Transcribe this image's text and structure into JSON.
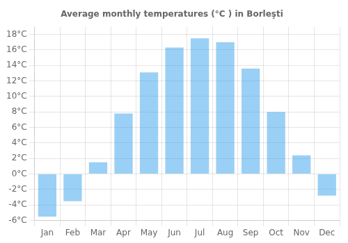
{
  "chart_data": {
    "type": "bar",
    "title": "Average monthly temperatures (°C ) in Borleşti",
    "categories": [
      "Jan",
      "Feb",
      "Mar",
      "Apr",
      "May",
      "Jun",
      "Jul",
      "Aug",
      "Sep",
      "Oct",
      "Nov",
      "Dec"
    ],
    "values": [
      -5.5,
      -3.5,
      1.5,
      7.8,
      13.1,
      16.3,
      17.5,
      17.0,
      13.6,
      8.0,
      2.4,
      -2.8
    ],
    "ylim": [
      -6,
      19
    ],
    "yticks": [
      {
        "value": -6,
        "label": "-6°C"
      },
      {
        "value": -4,
        "label": "-4°C"
      },
      {
        "value": -2,
        "label": "-2°C"
      },
      {
        "value": 0,
        "label": "0°C"
      },
      {
        "value": 2,
        "label": "2°C"
      },
      {
        "value": 4,
        "label": "4°C"
      },
      {
        "value": 6,
        "label": "6°C"
      },
      {
        "value": 8,
        "label": "8°C"
      },
      {
        "value": 10,
        "label": "10°C"
      },
      {
        "value": 12,
        "label": "12°C"
      },
      {
        "value": 14,
        "label": "14°C"
      },
      {
        "value": 16,
        "label": "16°C"
      },
      {
        "value": 18,
        "label": "18°C"
      }
    ],
    "grid": true
  }
}
